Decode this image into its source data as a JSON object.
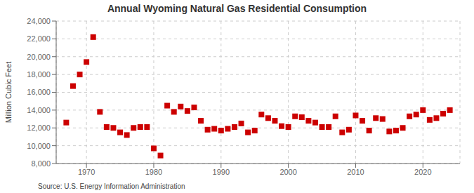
{
  "chart_data": {
    "type": "scatter",
    "title": "Annual Wyoming Natural Gas Residential Consumption",
    "ylabel": "Million Cubic Feet",
    "source": "Source: U.S. Energy Information Administration",
    "color": "#cc0000",
    "marker": "square",
    "grid": true,
    "x": [
      1967,
      1968,
      1969,
      1970,
      1971,
      1972,
      1973,
      1974,
      1975,
      1976,
      1977,
      1978,
      1979,
      1980,
      1981,
      1982,
      1983,
      1984,
      1985,
      1986,
      1987,
      1988,
      1989,
      1990,
      1991,
      1992,
      1993,
      1994,
      1995,
      1996,
      1997,
      1998,
      1999,
      2000,
      2001,
      2002,
      2003,
      2004,
      2005,
      2006,
      2007,
      2008,
      2009,
      2010,
      2011,
      2012,
      2013,
      2014,
      2015,
      2016,
      2017,
      2018,
      2019,
      2020,
      2021,
      2022,
      2023,
      2024
    ],
    "values": [
      12600,
      16700,
      18000,
      19400,
      22200,
      13800,
      12100,
      12000,
      11500,
      11200,
      12000,
      12100,
      12100,
      9700,
      8900,
      14500,
      13800,
      14400,
      13900,
      14300,
      12800,
      11800,
      11900,
      11700,
      11900,
      12100,
      12500,
      11500,
      11700,
      13500,
      13100,
      12800,
      12200,
      12100,
      13300,
      13200,
      12800,
      12600,
      12100,
      12100,
      13300,
      11500,
      11800,
      13400,
      12800,
      11700,
      13100,
      13000,
      11600,
      11700,
      12000,
      13300,
      13500,
      14000,
      12900,
      13100,
      13600,
      14000
    ],
    "xlim": [
      1965.5,
      2025.5
    ],
    "xticks": [
      1970,
      1980,
      1990,
      2000,
      2010,
      2020
    ],
    "ylim": [
      8000,
      24000
    ],
    "yticks": [
      {
        "value": 8000,
        "label": "8,000"
      },
      {
        "value": 10000,
        "label": "10,000"
      },
      {
        "value": 12000,
        "label": "12,000"
      },
      {
        "value": 14000,
        "label": "14,000"
      },
      {
        "value": 16000,
        "label": "16,000"
      },
      {
        "value": 18000,
        "label": "18,000"
      },
      {
        "value": 20000,
        "label": "20,000"
      },
      {
        "value": 22000,
        "label": "22,000"
      },
      {
        "value": 24000,
        "label": "24,000"
      }
    ]
  }
}
